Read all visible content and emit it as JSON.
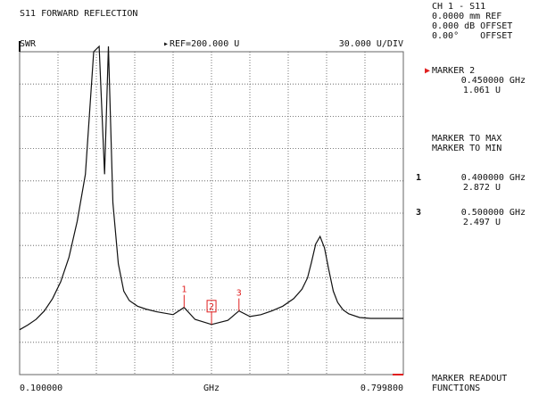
{
  "header": {
    "title": "S11 FORWARD REFLECTION",
    "format": "SWR",
    "ref": "REF=200.000 U",
    "scale": "30.000 U/DIV"
  },
  "axis": {
    "start": "0.100000",
    "unit": "GHz",
    "stop": "0.799800"
  },
  "side_panel": {
    "ch_line": "CH 1 - S11",
    "offset_lines": [
      "0.0000 mm REF",
      "0.000 dB OFFSET",
      "0.00°    OFFSET"
    ],
    "active_marker": {
      "label": "MARKER 2",
      "freq": "0.450000 GHz",
      "value": "1.061 U"
    },
    "menu": [
      "MARKER TO MAX",
      "MARKER TO MIN"
    ],
    "markers": [
      {
        "num": "1",
        "freq": "0.400000 GHz",
        "value": "2.872 U"
      },
      {
        "num": "3",
        "freq": "0.500000 GHz",
        "value": "2.497 U"
      }
    ],
    "footer": [
      "MARKER READOUT",
      "FUNCTIONS"
    ]
  },
  "trace_markers": [
    {
      "label": "1",
      "freq_ghz": 0.4
    },
    {
      "label": "2",
      "freq_ghz": 0.45,
      "active": true
    },
    {
      "label": "3",
      "freq_ghz": 0.5
    }
  ],
  "colors": {
    "marker": "#e02020",
    "trace": "#111111",
    "grid": "#555555"
  },
  "chart_data": {
    "type": "line",
    "title": "S11 FORWARD REFLECTION",
    "xlabel": "GHz",
    "ylabel": "SWR",
    "xlim": [
      0.1,
      0.7998
    ],
    "grid": true,
    "x": [
      0.1,
      0.115,
      0.13,
      0.145,
      0.16,
      0.175,
      0.19,
      0.205,
      0.22,
      0.235,
      0.245,
      0.255,
      0.262,
      0.27,
      0.28,
      0.29,
      0.3,
      0.315,
      0.33,
      0.35,
      0.38,
      0.4,
      0.42,
      0.45,
      0.48,
      0.5,
      0.52,
      0.54,
      0.56,
      0.58,
      0.6,
      0.615,
      0.625,
      0.632,
      0.64,
      0.648,
      0.656,
      0.664,
      0.672,
      0.68,
      0.69,
      0.7,
      0.72,
      0.74,
      0.76,
      0.7998
    ],
    "y": [
      0.5,
      1.0,
      1.6,
      2.5,
      3.8,
      5.6,
      8.2,
      12.0,
      17.0,
      30.0,
      36.0,
      17.0,
      34.0,
      14.0,
      7.5,
      4.6,
      3.6,
      3.0,
      2.7,
      2.4,
      2.1,
      2.87,
      1.6,
      1.06,
      1.5,
      2.5,
      1.9,
      2.1,
      2.5,
      3.0,
      3.8,
      4.8,
      6.0,
      7.6,
      9.6,
      10.4,
      9.2,
      6.8,
      4.6,
      3.4,
      2.6,
      2.2,
      1.8,
      1.7,
      1.7,
      1.7
    ]
  }
}
